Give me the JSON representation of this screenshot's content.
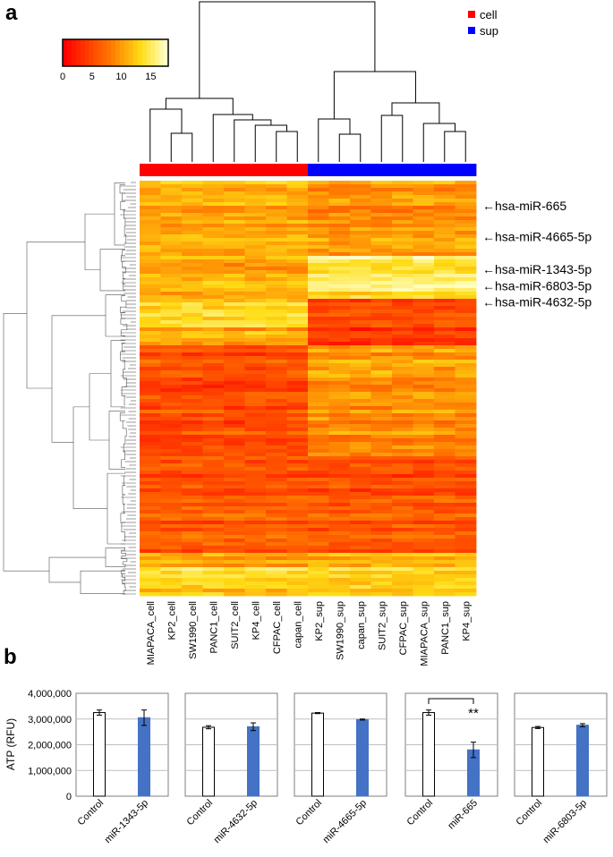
{
  "panel_a_label": "a",
  "panel_b_label": "b",
  "colors": {
    "cell": "#ff0000",
    "sup": "#0000ff",
    "control_fill": "#ffffff",
    "treated_fill": "#4472c4",
    "heat_low": "#ff0000",
    "heat_high": "#ffffe0"
  },
  "chart_data": [
    {
      "type": "heatmap",
      "title": "",
      "legend": {
        "cell_label": "cell",
        "sup_label": "sup"
      },
      "colorbar": {
        "ticks": [
          "0",
          "5",
          "10",
          "15"
        ],
        "range": [
          0,
          18
        ]
      },
      "columns": [
        "MIAPACA_cell",
        "KP2_cell",
        "SW1990_cell",
        "PANC1_cell",
        "SUIT2_cell",
        "KP4_cell",
        "CFPAC_cell",
        "capan_cell",
        "KP2_sup",
        "SW1990_sup",
        "capan_sup",
        "SUIT2_sup",
        "CFPAC_sup",
        "MIAPACA_sup",
        "PANC1_sup",
        "KP4_sup"
      ],
      "column_groups": [
        "cell",
        "cell",
        "cell",
        "cell",
        "cell",
        "cell",
        "cell",
        "cell",
        "sup",
        "sup",
        "sup",
        "sup",
        "sup",
        "sup",
        "sup",
        "sup"
      ],
      "annotations": [
        {
          "label": "hsa-miR-665",
          "row_fraction": 0.06
        },
        {
          "label": "hsa-miR-4665-5p",
          "row_fraction": 0.135
        },
        {
          "label": "hsa-miR-1343-5p",
          "row_fraction": 0.213
        },
        {
          "label": "hsa-miR-6803-5p",
          "row_fraction": 0.253
        },
        {
          "label": "hsa-miR-4632-5p",
          "row_fraction": 0.292
        }
      ]
    },
    {
      "type": "bar",
      "ylabel": "ATP (RFU)",
      "ylim": [
        0,
        4000000
      ],
      "yticks": [
        "0",
        "1,000,000",
        "2,000,000",
        "3,000,000",
        "4,000,000"
      ],
      "ytick_values": [
        0,
        1000000,
        2000000,
        3000000,
        4000000
      ],
      "panels": [
        {
          "categories": [
            "Control",
            "miR-1343-5p"
          ],
          "values": [
            3250000,
            3050000
          ],
          "errors": [
            100000,
            300000
          ],
          "significance": ""
        },
        {
          "categories": [
            "Control",
            "miR-4632-5p"
          ],
          "values": [
            2680000,
            2700000
          ],
          "errors": [
            60000,
            150000
          ],
          "significance": ""
        },
        {
          "categories": [
            "Control",
            "miR-4665-5p"
          ],
          "values": [
            3230000,
            2980000
          ],
          "errors": [
            20000,
            20000
          ],
          "significance": ""
        },
        {
          "categories": [
            "Control",
            "miR-665"
          ],
          "values": [
            3250000,
            1800000
          ],
          "errors": [
            100000,
            300000
          ],
          "significance": "**"
        },
        {
          "categories": [
            "Control",
            "miR-6803-5p"
          ],
          "values": [
            2670000,
            2760000
          ],
          "errors": [
            40000,
            60000
          ],
          "significance": ""
        }
      ]
    }
  ]
}
